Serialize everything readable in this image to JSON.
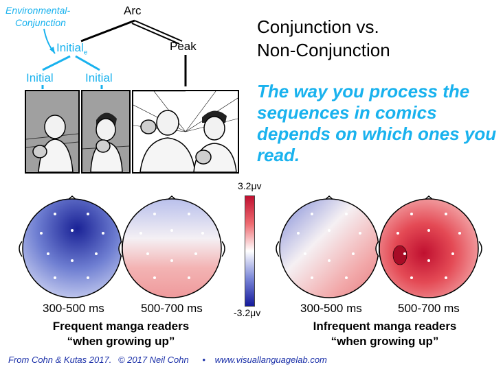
{
  "tree": {
    "env_conj_line1": "Environmental-",
    "env_conj_line2": "Conjunction",
    "arc": "Arc",
    "peak": "Peak",
    "initial_e": "Initial",
    "initial_e_sub": "e",
    "initial_left": "Initial",
    "initial_right": "Initial"
  },
  "title": {
    "line1": "Conjunction vs.",
    "line2": "Non-Conjunction"
  },
  "claim": "The way you process the sequences in comics depends on which ones you read.",
  "colorbar": {
    "max_label": "3.2μv",
    "min_label": "-3.2μv"
  },
  "maps": [
    {
      "window": "300-500 ms"
    },
    {
      "window": "500-700 ms"
    },
    {
      "window": "300-500 ms"
    },
    {
      "window": "500-700 ms"
    }
  ],
  "groups": [
    {
      "line1": "Frequent manga readers",
      "line2": "“when growing up”"
    },
    {
      "line1": "Infrequent manga readers",
      "line2": "“when growing up”"
    }
  ],
  "footer": {
    "citation": "From Cohn & Kutas 2017.",
    "copyright": "© 2017 Neil Cohn",
    "bullet": "•",
    "url": "www.visuallanguagelab.com"
  },
  "colors": {
    "accent": "#19b2ee",
    "footer": "#1a2fa8",
    "negative": "#151a9c",
    "positive": "#c01030"
  }
}
